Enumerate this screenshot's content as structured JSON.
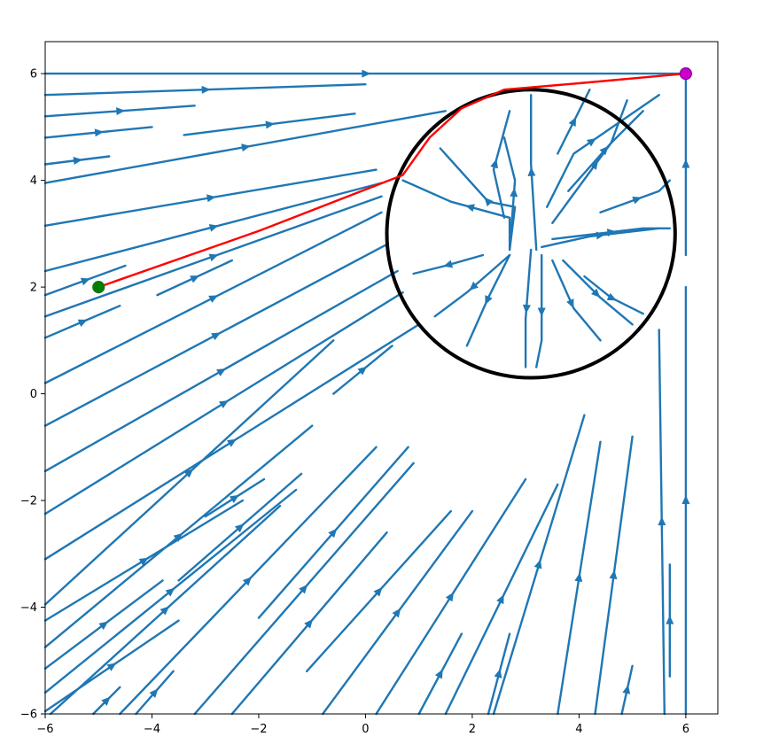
{
  "chart_data": {
    "type": "streamplot",
    "title": "",
    "xlabel": "",
    "ylabel": "",
    "xlim": [
      -6,
      6.6
    ],
    "ylim": [
      -6,
      6.6
    ],
    "x_ticks": [
      -6,
      -4,
      -2,
      0,
      2,
      4,
      6
    ],
    "y_ticks": [
      -6,
      -4,
      -2,
      0,
      2,
      4,
      6
    ],
    "x_tick_labels": [
      "−6",
      "−4",
      "−2",
      "0",
      "2",
      "4",
      "6"
    ],
    "y_tick_labels": [
      "−6",
      "−4",
      "−2",
      "0",
      "2",
      "4",
      "6"
    ],
    "grid": false,
    "goal": {
      "x": 6,
      "y": 6,
      "color": "#cc00cc"
    },
    "start": {
      "x": -5,
      "y": 2,
      "color": "#008000"
    },
    "obstacle": {
      "center": [
        3.1,
        3.0
      ],
      "radius": 2.7,
      "color": "#000000"
    },
    "path": {
      "color": "#ff0000",
      "points": [
        [
          -5,
          2
        ],
        [
          -2,
          3.05
        ],
        [
          0.7,
          4.1
        ],
        [
          1.2,
          4.8
        ],
        [
          1.8,
          5.35
        ],
        [
          2.6,
          5.7
        ],
        [
          4,
          5.82
        ],
        [
          6,
          6
        ]
      ]
    },
    "streamlines": {
      "color": "#1f77b4",
      "outside": [
        [
          [
            -6,
            6
          ],
          [
            6,
            6
          ]
        ],
        [
          [
            -6,
            5.6
          ],
          [
            0,
            5.8
          ]
        ],
        [
          [
            -6,
            5.2
          ],
          [
            -3.2,
            5.4
          ]
        ],
        [
          [
            -6,
            4.8
          ],
          [
            -4,
            5
          ]
        ],
        [
          [
            -6,
            4.3
          ],
          [
            -4.8,
            4.45
          ]
        ],
        [
          [
            -3.4,
            4.85
          ],
          [
            -0.2,
            5.25
          ]
        ],
        [
          [
            -6,
            3.95
          ],
          [
            1.5,
            5.3
          ]
        ],
        [
          [
            -6,
            3.15
          ],
          [
            0.2,
            4.2
          ]
        ],
        [
          [
            -6,
            2.3
          ],
          [
            0.3,
            3.95
          ]
        ],
        [
          [
            -6,
            1.85
          ],
          [
            -4.5,
            2.4
          ]
        ],
        [
          [
            -6,
            1.45
          ],
          [
            0.3,
            3.7
          ]
        ],
        [
          [
            -3.9,
            1.85
          ],
          [
            -2.5,
            2.5
          ]
        ],
        [
          [
            -6,
            1.05
          ],
          [
            -4.6,
            1.65
          ]
        ],
        [
          [
            -6,
            0.2
          ],
          [
            0.3,
            3.4
          ]
        ],
        [
          [
            -6,
            -0.6
          ],
          [
            0.4,
            2.8
          ]
        ],
        [
          [
            -6,
            -1.45
          ],
          [
            0.6,
            2.3
          ]
        ],
        [
          [
            -6,
            -2.25
          ],
          [
            0.7,
            1.9
          ]
        ],
        [
          [
            -6,
            -3.1
          ],
          [
            1.0,
            1.3
          ]
        ],
        [
          [
            -6,
            -3.95
          ],
          [
            -0.6,
            1.0
          ]
        ],
        [
          [
            -6,
            -4.25
          ],
          [
            -2.3,
            -2.0
          ]
        ],
        [
          [
            -6,
            -4.75
          ],
          [
            -1.0,
            -0.6
          ]
        ],
        [
          [
            -6,
            -5.15
          ],
          [
            -3.8,
            -3.5
          ]
        ],
        [
          [
            -6,
            -5.6
          ],
          [
            -1.3,
            -1.8
          ]
        ],
        [
          [
            -6,
            -5.95
          ],
          [
            -3.5,
            -4.25
          ]
        ],
        [
          [
            -5.9,
            -6
          ],
          [
            -1.6,
            -2.1
          ]
        ],
        [
          [
            -5.1,
            -6
          ],
          [
            -4.6,
            -5.5
          ]
        ],
        [
          [
            -4.6,
            -6
          ],
          [
            0.2,
            -1.0
          ]
        ],
        [
          [
            -4.3,
            -6
          ],
          [
            -3.6,
            -5.2
          ]
        ],
        [
          [
            -3.2,
            -6
          ],
          [
            0.9,
            -1.3
          ]
        ],
        [
          [
            -2.5,
            -6
          ],
          [
            0.4,
            -2.6
          ]
        ],
        [
          [
            -0.8,
            -6
          ],
          [
            2.0,
            -2.2
          ]
        ],
        [
          [
            0.2,
            -6
          ],
          [
            3.0,
            -1.6
          ]
        ],
        [
          [
            1.5,
            -6
          ],
          [
            3.6,
            -1.7
          ]
        ],
        [
          [
            2.4,
            -6
          ],
          [
            4.1,
            -0.4
          ]
        ],
        [
          [
            3.6,
            -6
          ],
          [
            4.4,
            -0.9
          ]
        ],
        [
          [
            4.3,
            -6
          ],
          [
            5.0,
            -0.8
          ]
        ],
        [
          [
            4.8,
            -6
          ],
          [
            5.0,
            -5.1
          ]
        ],
        [
          [
            5.6,
            -6
          ],
          [
            5.5,
            1.2
          ]
        ],
        [
          [
            6,
            -6
          ],
          [
            6,
            2.0
          ]
        ],
        [
          [
            6,
            2.6
          ],
          [
            6,
            6
          ]
        ],
        [
          [
            5.7,
            -5.3
          ],
          [
            5.7,
            -3.2
          ]
        ],
        [
          [
            -3.5,
            -3.5
          ],
          [
            -1.2,
            -1.5
          ]
        ],
        [
          [
            -1.1,
            -5.2
          ],
          [
            1.6,
            -2.2
          ]
        ],
        [
          [
            1.0,
            -6
          ],
          [
            1.8,
            -4.5
          ]
        ],
        [
          [
            2.3,
            -6
          ],
          [
            2.7,
            -4.5
          ]
        ],
        [
          [
            -0.6,
            0.0
          ],
          [
            0.5,
            0.9
          ]
        ],
        [
          [
            -2.0,
            -4.2
          ],
          [
            0.8,
            -1.0
          ]
        ],
        [
          [
            -3.0,
            -2.3
          ],
          [
            -1.9,
            -1.6
          ]
        ]
      ],
      "inside": [
        [
          [
            2.7,
            2.7
          ],
          [
            2.8,
            4.0
          ],
          [
            2.6,
            4.8
          ]
        ],
        [
          [
            2.7,
            2.7
          ],
          [
            2.8,
            3.5
          ],
          [
            2.3,
            3.6
          ],
          [
            1.4,
            4.6
          ]
        ],
        [
          [
            2.7,
            2.7
          ],
          [
            2.7,
            3.3
          ],
          [
            1.6,
            3.6
          ],
          [
            0.7,
            4.0
          ]
        ],
        [
          [
            2.2,
            2.6
          ],
          [
            1.5,
            2.4
          ],
          [
            0.9,
            2.25
          ]
        ],
        [
          [
            2.7,
            2.6
          ],
          [
            1.9,
            1.9
          ],
          [
            1.3,
            1.45
          ]
        ],
        [
          [
            2.7,
            2.6
          ],
          [
            2.3,
            1.8
          ],
          [
            1.9,
            0.9
          ]
        ],
        [
          [
            3.1,
            2.7
          ],
          [
            3.0,
            1.4
          ],
          [
            3.0,
            0.5
          ]
        ],
        [
          [
            3.3,
            2.6
          ],
          [
            3.3,
            1.0
          ],
          [
            3.2,
            0.5
          ]
        ],
        [
          [
            3.5,
            2.5
          ],
          [
            3.9,
            1.6
          ],
          [
            4.4,
            1.0
          ]
        ],
        [
          [
            3.7,
            2.5
          ],
          [
            4.4,
            1.8
          ],
          [
            5.0,
            1.3
          ]
        ],
        [
          [
            4.1,
            2.2
          ],
          [
            4.6,
            1.8
          ],
          [
            5.2,
            1.5
          ]
        ],
        [
          [
            3.3,
            2.75
          ],
          [
            4.2,
            2.95
          ],
          [
            5.5,
            3.1
          ]
        ],
        [
          [
            3.5,
            2.9
          ],
          [
            5.2,
            3.1
          ],
          [
            5.7,
            3.1
          ]
        ],
        [
          [
            4.4,
            3.4
          ],
          [
            5.5,
            3.8
          ],
          [
            5.7,
            4.0
          ]
        ],
        [
          [
            3.5,
            3.2
          ],
          [
            4.6,
            4.7
          ],
          [
            5.2,
            5.3
          ]
        ],
        [
          [
            3.8,
            3.8
          ],
          [
            4.6,
            4.7
          ],
          [
            4.9,
            5.5
          ]
        ],
        [
          [
            3.6,
            4.5
          ],
          [
            4.0,
            5.3
          ],
          [
            4.2,
            5.7
          ]
        ],
        [
          [
            3.4,
            3.5
          ],
          [
            3.9,
            4.5
          ],
          [
            5.5,
            5.6
          ]
        ],
        [
          [
            3.2,
            2.7
          ],
          [
            3.1,
            4.3
          ],
          [
            3.1,
            5.6
          ]
        ],
        [
          [
            2.6,
            3.3
          ],
          [
            2.4,
            4.2
          ],
          [
            2.7,
            5.3
          ]
        ]
      ]
    }
  }
}
